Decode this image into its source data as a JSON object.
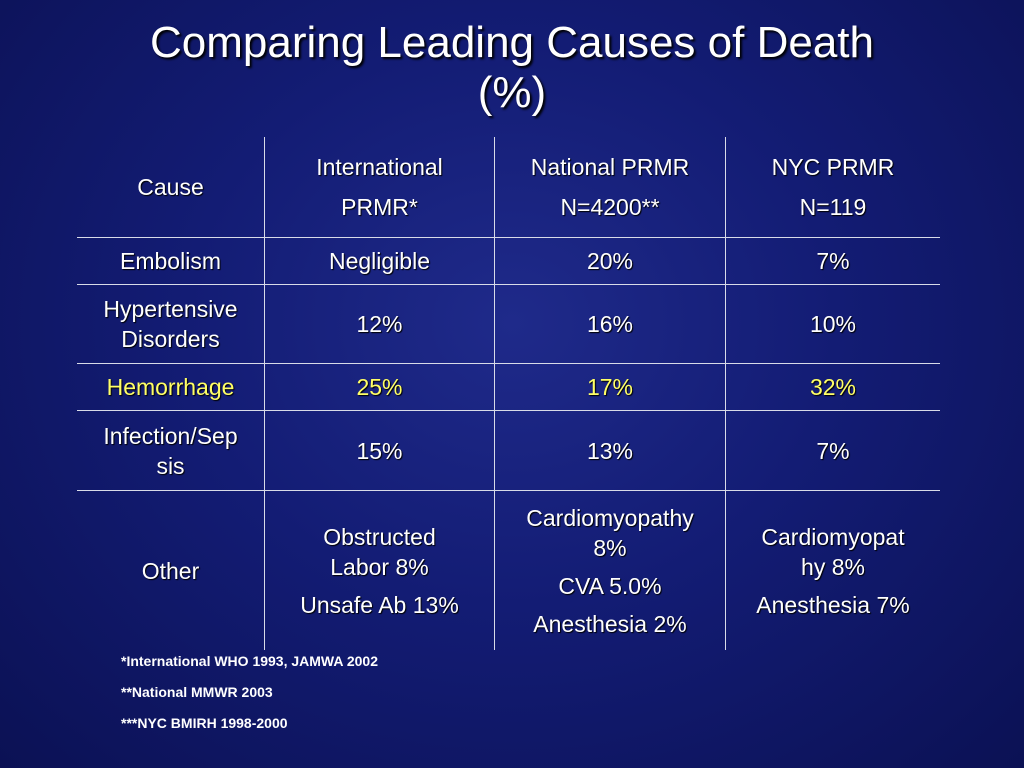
{
  "slide": {
    "title_line1": "Comparing Leading Causes of Death",
    "title_line2": "(%)"
  },
  "table": {
    "headers": {
      "cause": "Cause",
      "international": [
        "International",
        "PRMR*"
      ],
      "national": [
        "National PRMR",
        "N=4200**"
      ],
      "nyc": [
        "NYC PRMR",
        "N=119"
      ]
    },
    "rows": [
      {
        "cause": "Embolism",
        "international": "Negligible",
        "national": "20%",
        "nyc": "7%"
      },
      {
        "cause": [
          "Hypertensive",
          "Disorders"
        ],
        "international": "12%",
        "national": "16%",
        "nyc": "10%"
      },
      {
        "cause": "Hemorrhage",
        "international": "25%",
        "national": "17%",
        "nyc": "32%",
        "highlight_color": "#ffff66"
      },
      {
        "cause": [
          "Infection/Sep",
          "sis"
        ],
        "international": "15%",
        "national": "13%",
        "nyc": "7%"
      },
      {
        "cause": "Other",
        "international": {
          "line1": [
            "Obstructed",
            "Labor 8%"
          ],
          "line2": "Unsafe Ab 13%"
        },
        "national": {
          "line1": [
            "Cardiomyopathy",
            "8%"
          ],
          "line2": "CVA 5.0%",
          "line3": "Anesthesia 2%"
        },
        "nyc": {
          "line1": [
            "Cardiomyopat",
            "hy 8%"
          ],
          "line2": "Anesthesia 7%"
        }
      }
    ]
  },
  "footnotes": [
    "*International WHO 1993, JAMWA 2002",
    "**National MMWR 2003",
    "***NYC BMIRH 1998-2000"
  ]
}
